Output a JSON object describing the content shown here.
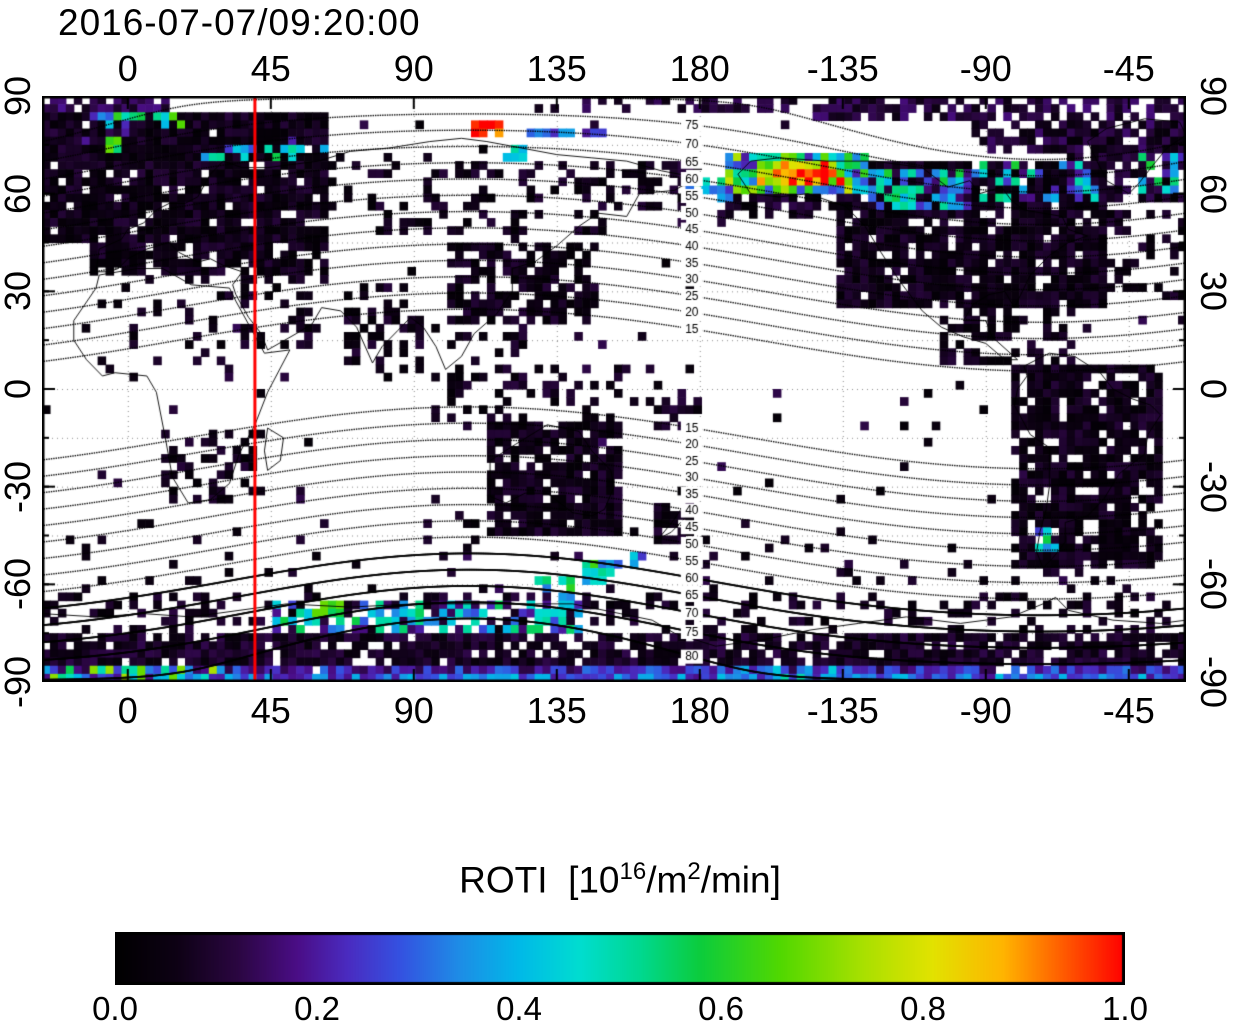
{
  "title": "2016-07-07/09:20:00",
  "map": {
    "lon_range": [
      -27,
      333
    ],
    "lat_range": [
      -90,
      90
    ],
    "top_ticks": [
      {
        "label": "0",
        "lon": 0
      },
      {
        "label": "45",
        "lon": 45
      },
      {
        "label": "90",
        "lon": 90
      },
      {
        "label": "135",
        "lon": 135
      },
      {
        "label": "180",
        "lon": 180
      },
      {
        "label": "-135",
        "lon": 225
      },
      {
        "label": "-90",
        "lon": 270
      },
      {
        "label": "-45",
        "lon": 315
      }
    ],
    "lat_ticks": [
      {
        "label": "90",
        "lat": 90
      },
      {
        "label": "60",
        "lat": 60
      },
      {
        "label": "30",
        "lat": 30
      },
      {
        "label": "0",
        "lat": 0
      },
      {
        "label": "-30",
        "lat": -30
      },
      {
        "label": "-60",
        "lat": -60
      },
      {
        "label": "-90",
        "lat": -90
      }
    ],
    "grid_lat_step_deg": 15,
    "grid_lon_step_deg": 45,
    "red_line_lon": 40,
    "red_line_color": "#ff0000"
  },
  "colorbar": {
    "title_prefix": "ROTI  [10",
    "title_sup1": "16",
    "title_mid": "/m",
    "title_sup2": "2",
    "title_suffix": "/min]",
    "ticks": [
      {
        "label": "0.0",
        "value": 0.0
      },
      {
        "label": "0.2",
        "value": 0.2
      },
      {
        "label": "0.4",
        "value": 0.4
      },
      {
        "label": "0.6",
        "value": 0.6
      },
      {
        "label": "0.8",
        "value": 0.8
      },
      {
        "label": "1.0",
        "value": 1.0
      }
    ]
  },
  "chart_data": {
    "type": "heatmap",
    "title": "2016-07-07/09:20:00",
    "colorbar_label": "ROTI [10^16/m^2/min]",
    "value_range": [
      0,
      1
    ],
    "lon_axis_tick_labels": [
      "0",
      "45",
      "90",
      "135",
      "180",
      "-135",
      "-90",
      "-45"
    ],
    "lat_axis_tick_labels": [
      "90",
      "60",
      "30",
      "0",
      "-30",
      "-60",
      "-90"
    ],
    "lon_range": [
      -27,
      333
    ],
    "lat_range": [
      -90,
      90
    ],
    "cell_deg": 2.5,
    "red_meridian_lon": 40,
    "colormap_stops": [
      [
        0.0,
        "#000000"
      ],
      [
        0.06,
        "#0d0114"
      ],
      [
        0.12,
        "#2a0640"
      ],
      [
        0.18,
        "#4a0d86"
      ],
      [
        0.23,
        "#4a2bc0"
      ],
      [
        0.28,
        "#3550e0"
      ],
      [
        0.34,
        "#1e8ce6"
      ],
      [
        0.4,
        "#00b9e8"
      ],
      [
        0.46,
        "#00ddd0"
      ],
      [
        0.52,
        "#00d890"
      ],
      [
        0.58,
        "#0ccc3c"
      ],
      [
        0.66,
        "#52d800"
      ],
      [
        0.74,
        "#a8e000"
      ],
      [
        0.81,
        "#e2e200"
      ],
      [
        0.88,
        "#ffb400"
      ],
      [
        0.94,
        "#ff5a00"
      ],
      [
        1.0,
        "#ff0000"
      ]
    ],
    "magnetic_contours": {
      "levels_min": 15,
      "levels_max": 80,
      "levels_step": 5,
      "dipole_pole_lat": 80.5,
      "dipole_pole_lon_map": 287.4,
      "label_lon": 177.5,
      "solid_south_from": 60
    },
    "coverage_patches": [
      [
        -27,
        333,
        -84,
        -76,
        0.08,
        0.85,
        0.05
      ],
      [
        -27,
        333,
        -88,
        -84,
        0.22,
        0.95,
        0.1
      ],
      [
        -27,
        333,
        -90,
        -88,
        0.3,
        1.0,
        0.12
      ],
      [
        -27,
        35,
        -90,
        -84,
        0.45,
        0.75,
        0.3
      ],
      [
        190,
        230,
        -90,
        -86,
        0.35,
        0.8,
        0.15
      ],
      [
        -27,
        60,
        76,
        84,
        0.15,
        0.9,
        0.08
      ],
      [
        -27,
        12,
        84,
        90,
        0.13,
        0.85,
        0.06
      ],
      [
        140,
        215,
        84,
        90,
        0.1,
        0.5,
        0.05
      ],
      [
        215,
        333,
        82,
        90,
        0.11,
        0.7,
        0.06
      ],
      [
        265,
        333,
        72,
        82,
        0.1,
        0.75,
        0.06
      ],
      [
        -27,
        62,
        45,
        84,
        0.06,
        0.92,
        0.05
      ],
      [
        -12,
        62,
        34,
        45,
        0.06,
        0.8,
        0.05
      ],
      [
        62,
        95,
        48,
        72,
        0.06,
        0.3,
        0.05
      ],
      [
        95,
        150,
        45,
        70,
        0.06,
        0.25,
        0.05
      ],
      [
        150,
        180,
        55,
        70,
        0.07,
        0.45,
        0.05
      ],
      [
        100,
        147,
        20,
        45,
        0.06,
        0.7,
        0.05
      ],
      [
        68,
        92,
        5,
        32,
        0.06,
        0.35,
        0.05
      ],
      [
        35,
        62,
        12,
        35,
        0.06,
        0.3,
        0.05
      ],
      [
        -17,
        35,
        2,
        34,
        0.06,
        0.12,
        0.04
      ],
      [
        10,
        42,
        -36,
        -12,
        0.06,
        0.45,
        0.05
      ],
      [
        95,
        125,
        -11,
        20,
        0.06,
        0.3,
        0.05
      ],
      [
        113,
        155,
        -45,
        -10,
        0.06,
        0.85,
        0.05
      ],
      [
        165,
        179,
        -48,
        -34,
        0.06,
        0.8,
        0.05
      ],
      [
        120,
        180,
        -12,
        8,
        0.07,
        0.3,
        0.05
      ],
      [
        186,
        228,
        52,
        64,
        0.07,
        0.7,
        0.06
      ],
      [
        222,
        308,
        24,
        70,
        0.06,
        0.88,
        0.05
      ],
      [
        255,
        278,
        8,
        24,
        0.06,
        0.5,
        0.05
      ],
      [
        278,
        302,
        8,
        24,
        0.06,
        0.3,
        0.05
      ],
      [
        278,
        326,
        -56,
        8,
        0.06,
        0.8,
        0.05
      ],
      [
        296,
        333,
        58,
        82,
        0.08,
        0.55,
        0.06
      ],
      [
        302,
        333,
        28,
        56,
        0.07,
        0.25,
        0.05
      ],
      [
        -27,
        333,
        -76,
        -62,
        0.07,
        0.3,
        0.05
      ],
      [
        -27,
        333,
        -62,
        -40,
        0.06,
        0.05,
        0.04
      ],
      [
        22,
        66,
        69,
        76,
        0.4,
        0.55,
        0.18
      ],
      [
        -12,
        18,
        79,
        85,
        0.45,
        0.5,
        0.25
      ],
      [
        -8,
        -2,
        73,
        77,
        0.6,
        0.9,
        0.1
      ],
      [
        108,
        118,
        78,
        82,
        0.95,
        0.9,
        0.1
      ],
      [
        120,
        152,
        77,
        81,
        0.28,
        0.6,
        0.1
      ],
      [
        118,
        126,
        70,
        74,
        0.45,
        0.8,
        0.1
      ],
      [
        176,
        194,
        58,
        66,
        0.42,
        0.6,
        0.2
      ],
      [
        188,
        234,
        61,
        73,
        0.5,
        0.95,
        0.3
      ],
      [
        198,
        226,
        63,
        70,
        0.85,
        0.9,
        0.25
      ],
      [
        204,
        220,
        64,
        68,
        0.97,
        0.85,
        0.1
      ],
      [
        234,
        266,
        56,
        68,
        0.35,
        0.75,
        0.25
      ],
      [
        266,
        288,
        57,
        69,
        0.3,
        0.6,
        0.3
      ],
      [
        288,
        306,
        58,
        70,
        0.33,
        0.5,
        0.2
      ],
      [
        318,
        333,
        60,
        72,
        0.4,
        0.5,
        0.2
      ],
      [
        286,
        294,
        -50,
        -43,
        0.42,
        0.6,
        0.2
      ],
      [
        45,
        142,
        -74,
        -64,
        0.33,
        0.7,
        0.25
      ],
      [
        55,
        68,
        -72,
        -66,
        0.5,
        0.6,
        0.2
      ],
      [
        142,
        152,
        -59,
        -53,
        0.5,
        0.7,
        0.2
      ],
      [
        150,
        164,
        -56,
        -50,
        0.28,
        0.5,
        0.15
      ],
      [
        128,
        140,
        -64,
        -58,
        0.45,
        0.5,
        0.2
      ],
      [
        95,
        108,
        -70,
        -64,
        0.3,
        0.7,
        0.2
      ]
    ],
    "ocean_noise": {
      "seed": 20160707,
      "density": 0.013,
      "value": 0.07,
      "jitter": 0.08,
      "lat_limits": [
        -86,
        87
      ]
    }
  },
  "coastlines": {
    "africa": [
      [
        -9,
        35
      ],
      [
        3,
        37
      ],
      [
        11,
        37
      ],
      [
        20,
        32
      ],
      [
        32,
        31
      ],
      [
        34,
        27
      ],
      [
        43,
        11
      ],
      [
        51,
        12
      ],
      [
        44,
        -1
      ],
      [
        40,
        -11
      ],
      [
        35,
        -20
      ],
      [
        32,
        -29
      ],
      [
        26,
        -34
      ],
      [
        19,
        -35
      ],
      [
        14,
        -27
      ],
      [
        12,
        -16
      ],
      [
        9,
        -1
      ],
      [
        6,
        4
      ],
      [
        -4,
        5
      ],
      [
        -8,
        4
      ],
      [
        -13,
        9
      ],
      [
        -17,
        15
      ],
      [
        -17,
        21
      ],
      [
        -10,
        31
      ],
      [
        -9,
        35
      ]
    ],
    "eurasia": [
      [
        -10,
        36
      ],
      [
        -9,
        43
      ],
      [
        -2,
        46
      ],
      [
        0,
        49
      ],
      [
        5,
        51
      ],
      [
        9,
        55
      ],
      [
        13,
        57
      ],
      [
        18,
        57
      ],
      [
        22,
        59
      ],
      [
        26,
        66
      ],
      [
        30,
        70
      ],
      [
        36,
        68
      ],
      [
        44,
        68
      ],
      [
        52,
        69
      ],
      [
        60,
        70
      ],
      [
        70,
        73
      ],
      [
        82,
        74
      ],
      [
        95,
        76
      ],
      [
        105,
        77
      ],
      [
        113,
        76
      ],
      [
        124,
        74
      ],
      [
        135,
        72
      ],
      [
        146,
        71
      ],
      [
        157,
        70
      ],
      [
        168,
        67
      ],
      [
        179,
        65
      ],
      [
        172,
        61
      ],
      [
        161,
        60
      ],
      [
        157,
        53
      ],
      [
        148,
        54
      ],
      [
        142,
        50
      ],
      [
        135,
        44
      ],
      [
        128,
        39
      ],
      [
        121,
        37
      ],
      [
        121,
        30
      ],
      [
        116,
        23
      ],
      [
        109,
        17
      ],
      [
        105,
        10
      ],
      [
        100,
        6
      ],
      [
        97,
        13
      ],
      [
        93,
        19
      ],
      [
        89,
        22
      ],
      [
        85,
        18
      ],
      [
        80,
        13
      ],
      [
        77,
        8
      ],
      [
        72,
        19
      ],
      [
        67,
        24
      ],
      [
        61,
        25
      ],
      [
        58,
        20
      ],
      [
        53,
        17
      ],
      [
        44,
        12
      ],
      [
        42,
        17
      ],
      [
        38,
        22
      ],
      [
        34,
        29
      ],
      [
        33,
        32
      ],
      [
        36,
        36
      ],
      [
        30,
        38
      ],
      [
        26,
        40
      ],
      [
        22,
        39
      ],
      [
        16,
        42
      ],
      [
        13,
        45
      ],
      [
        6,
        43
      ],
      [
        0,
        40
      ],
      [
        -3,
        37
      ],
      [
        -6,
        36
      ],
      [
        -10,
        36
      ]
    ],
    "australia": [
      [
        114,
        -22
      ],
      [
        114,
        -33
      ],
      [
        119,
        -35
      ],
      [
        125,
        -32
      ],
      [
        132,
        -32
      ],
      [
        136,
        -35
      ],
      [
        140,
        -38
      ],
      [
        146,
        -39
      ],
      [
        150,
        -37
      ],
      [
        153,
        -30
      ],
      [
        152,
        -25
      ],
      [
        146,
        -19
      ],
      [
        142,
        -13
      ],
      [
        137,
        -12
      ],
      [
        132,
        -11
      ],
      [
        127,
        -14
      ],
      [
        122,
        -17
      ],
      [
        114,
        -22
      ]
    ],
    "newzealand": [
      [
        167,
        -46
      ],
      [
        171,
        -44
      ],
      [
        174,
        -41
      ],
      [
        178,
        -37
      ],
      [
        174,
        -37
      ],
      [
        172,
        -40
      ],
      [
        167,
        -46
      ]
    ],
    "madagascar": [
      [
        44,
        -12
      ],
      [
        49,
        -15
      ],
      [
        48,
        -22
      ],
      [
        44,
        -25
      ],
      [
        43,
        -19
      ],
      [
        44,
        -12
      ]
    ],
    "northamerica": [
      [
        192,
        66
      ],
      [
        196,
        60
      ],
      [
        205,
        59
      ],
      [
        214,
        60
      ],
      [
        226,
        56
      ],
      [
        232,
        50
      ],
      [
        237,
        42
      ],
      [
        243,
        33
      ],
      [
        250,
        24
      ],
      [
        256,
        19
      ],
      [
        263,
        16
      ],
      [
        270,
        14
      ],
      [
        276,
        9
      ],
      [
        280,
        9
      ],
      [
        272,
        16
      ],
      [
        270,
        21
      ],
      [
        263,
        21
      ],
      [
        266,
        26
      ],
      [
        271,
        29
      ],
      [
        276,
        30
      ],
      [
        279,
        25
      ],
      [
        280,
        27
      ],
      [
        284,
        35
      ],
      [
        290,
        41
      ],
      [
        296,
        45
      ],
      [
        302,
        47
      ],
      [
        296,
        49
      ],
      [
        294,
        53
      ],
      [
        282,
        55
      ],
      [
        278,
        58
      ],
      [
        275,
        62
      ],
      [
        268,
        60
      ],
      [
        265,
        64
      ],
      [
        258,
        62
      ],
      [
        250,
        68
      ],
      [
        235,
        70
      ],
      [
        220,
        70
      ],
      [
        205,
        71
      ],
      [
        196,
        70
      ],
      [
        192,
        66
      ]
    ],
    "greenland": [
      [
        315,
        60
      ],
      [
        308,
        64
      ],
      [
        305,
        70
      ],
      [
        302,
        76
      ],
      [
        308,
        80
      ],
      [
        320,
        83
      ],
      [
        331,
        82
      ],
      [
        333,
        78
      ],
      [
        327,
        74
      ],
      [
        322,
        68
      ],
      [
        318,
        63
      ],
      [
        315,
        60
      ]
    ],
    "southamerica": [
      [
        282,
        7
      ],
      [
        290,
        11
      ],
      [
        298,
        10
      ],
      [
        306,
        5
      ],
      [
        310,
        0
      ],
      [
        316,
        -3
      ],
      [
        322,
        -5
      ],
      [
        325,
        -8
      ],
      [
        321,
        -14
      ],
      [
        320,
        -20
      ],
      [
        312,
        -26
      ],
      [
        307,
        -34
      ],
      [
        302,
        -39
      ],
      [
        295,
        -41
      ],
      [
        295,
        -47
      ],
      [
        291,
        -52
      ],
      [
        288,
        -55
      ],
      [
        286,
        -50
      ],
      [
        287,
        -44
      ],
      [
        289,
        -37
      ],
      [
        290,
        -30
      ],
      [
        290,
        -18
      ],
      [
        284,
        -14
      ],
      [
        279,
        -5
      ],
      [
        280,
        0
      ],
      [
        283,
        4
      ],
      [
        282,
        7
      ]
    ],
    "antarctica": [
      [
        -27,
        -69
      ],
      [
        -10,
        -70
      ],
      [
        5,
        -69
      ],
      [
        20,
        -70
      ],
      [
        35,
        -68
      ],
      [
        50,
        -66
      ],
      [
        70,
        -67
      ],
      [
        90,
        -66
      ],
      [
        110,
        -66
      ],
      [
        125,
        -66
      ],
      [
        140,
        -66
      ],
      [
        155,
        -69
      ],
      [
        165,
        -71
      ],
      [
        172,
        -75
      ],
      [
        185,
        -79
      ],
      [
        200,
        -77
      ],
      [
        215,
        -74
      ],
      [
        230,
        -72
      ],
      [
        245,
        -70
      ],
      [
        262,
        -72
      ],
      [
        278,
        -70
      ],
      [
        288,
        -66
      ],
      [
        292,
        -64
      ],
      [
        296,
        -68
      ],
      [
        310,
        -71
      ],
      [
        325,
        -72
      ],
      [
        333,
        -71
      ]
    ]
  }
}
